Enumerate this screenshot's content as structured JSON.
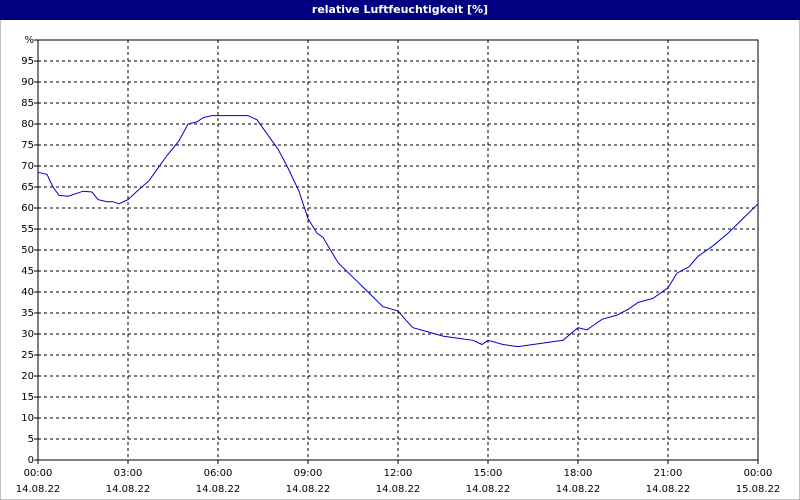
{
  "chart_data": {
    "type": "line",
    "title": "relative Luftfeuchtigkeit [%]",
    "x": [
      0,
      0.3,
      0.5,
      0.7,
      1.0,
      1.3,
      1.5,
      1.8,
      2.0,
      2.3,
      2.5,
      2.7,
      3.0,
      3.3,
      3.7,
      4.0,
      4.3,
      4.7,
      5.0,
      5.3,
      5.5,
      5.8,
      6.0,
      6.5,
      7.0,
      7.3,
      7.5,
      8.0,
      8.3,
      8.7,
      9.0,
      9.3,
      9.5,
      10.0,
      10.5,
      11.0,
      11.5,
      12.0,
      12.3,
      12.5,
      13.0,
      13.5,
      14.0,
      14.5,
      14.8,
      15.0,
      15.5,
      16.0,
      16.5,
      17.0,
      17.5,
      18.0,
      18.3,
      18.5,
      18.8,
      19.3,
      19.7,
      20.0,
      20.5,
      21.0,
      21.3,
      21.7,
      22.0,
      22.5,
      23.0,
      23.5,
      24.0
    ],
    "series": [
      {
        "color": "#0000cc",
        "values": [
          68.5,
          68,
          65,
          63,
          62.8,
          63.5,
          64,
          63.8,
          62,
          61.5,
          61.5,
          61,
          62,
          64,
          66.5,
          69.5,
          72.5,
          76,
          80,
          80.5,
          81.5,
          82,
          82,
          82,
          82,
          81,
          79,
          74,
          70,
          64,
          57.5,
          54,
          53,
          47,
          43.5,
          40,
          36.5,
          35.5,
          33,
          31.5,
          30.5,
          29.5,
          29,
          28.5,
          27.5,
          28.5,
          27.5,
          27,
          27.5,
          28,
          28.5,
          31.5,
          31,
          32,
          33.5,
          34.5,
          36,
          37.5,
          38.5,
          41,
          44.5,
          46,
          48.5,
          51,
          54,
          57.5,
          61
        ]
      }
    ],
    "xlim": [
      0,
      24
    ],
    "xticks": [
      {
        "value": 0,
        "label": "00:00"
      },
      {
        "value": 3,
        "label": "03:00"
      },
      {
        "value": 6,
        "label": "06:00"
      },
      {
        "value": 9,
        "label": "09:00"
      },
      {
        "value": 12,
        "label": "12:00"
      },
      {
        "value": 15,
        "label": "15:00"
      },
      {
        "value": 18,
        "label": "18:00"
      },
      {
        "value": 21,
        "label": "21:00"
      },
      {
        "value": 24,
        "label": "00:00"
      }
    ],
    "xtick_dates": [
      "14.08.22",
      "14.08.22",
      "14.08.22",
      "14.08.22",
      "14.08.22",
      "14.08.22",
      "14.08.22",
      "14.08.22",
      "15.08.22"
    ],
    "ylim": [
      0,
      100
    ],
    "yticks": [
      0,
      5,
      10,
      15,
      20,
      25,
      30,
      35,
      40,
      45,
      50,
      55,
      60,
      65,
      70,
      75,
      80,
      85,
      90,
      95,
      {
        "value": 100,
        "label": "%"
      }
    ],
    "grid": true
  }
}
